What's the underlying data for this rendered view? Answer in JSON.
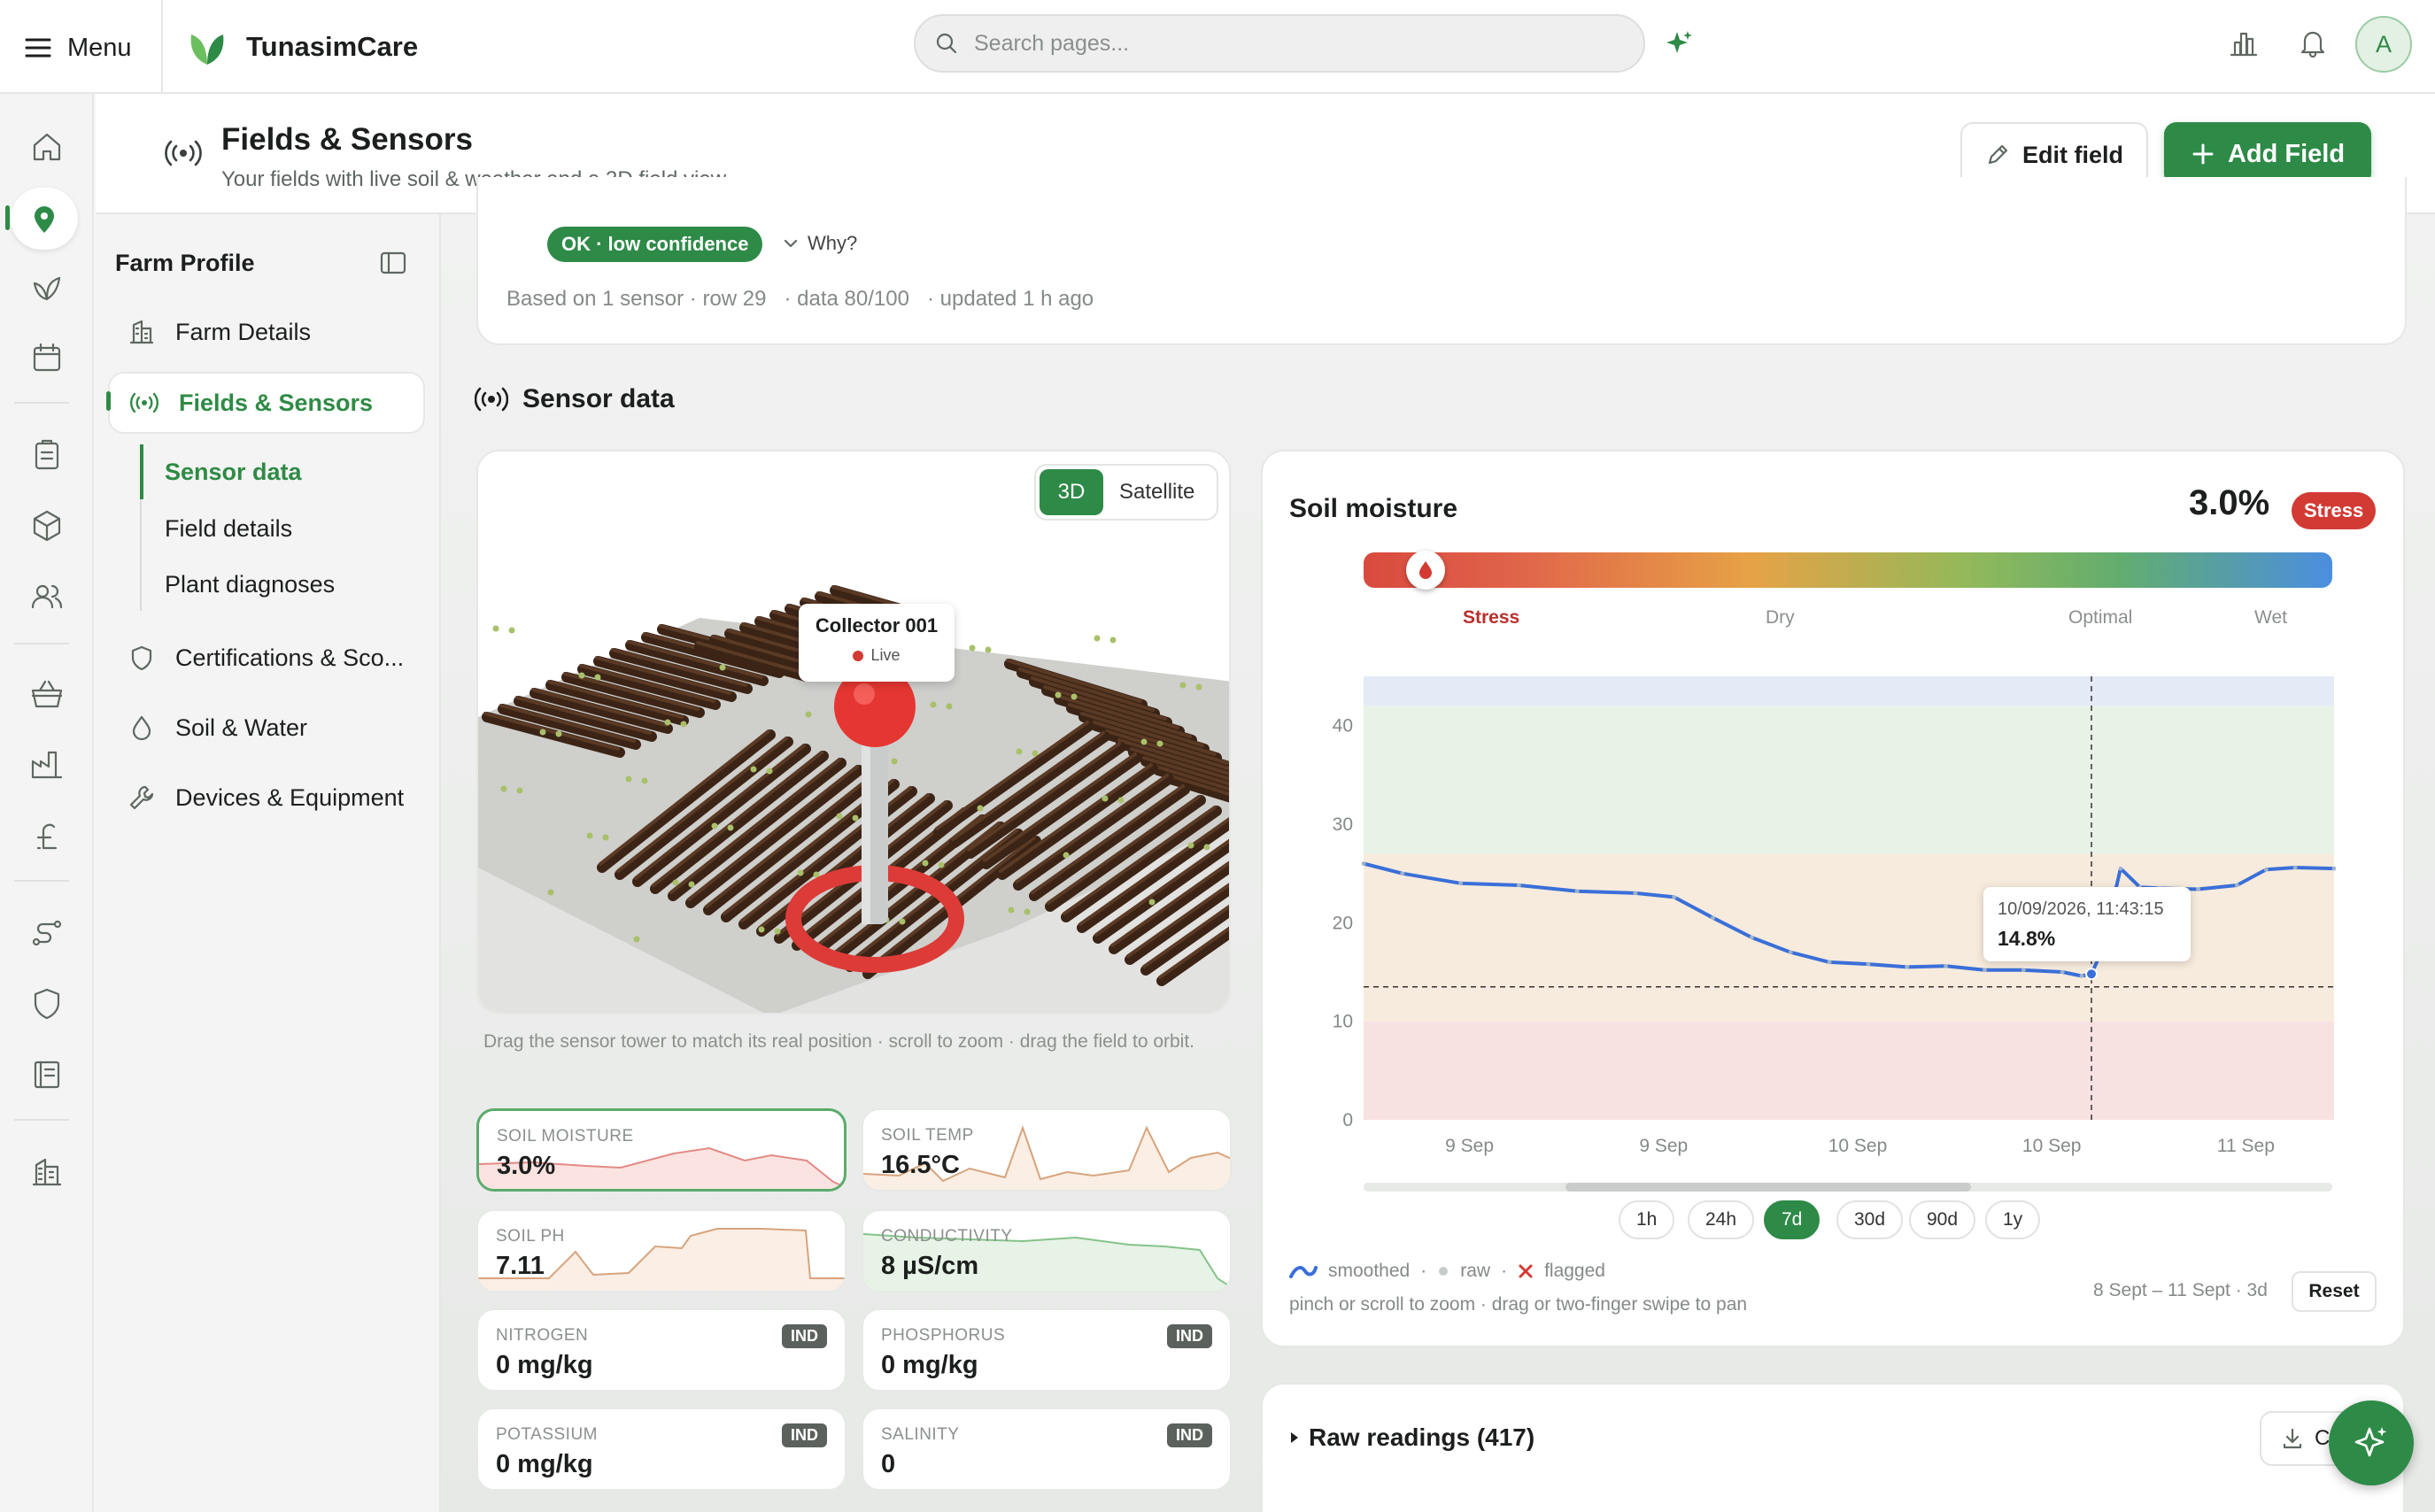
{
  "topbar": {
    "menu_label": "Menu",
    "brand": "TunasimCare",
    "search_placeholder": "Search pages...",
    "avatar_initial": "A"
  },
  "header": {
    "title": "Fields & Sensors",
    "subtitle": "Your fields with live soil & weather and a 3D field view",
    "edit_label": "Edit field",
    "add_label": "Add Field"
  },
  "sidebar": {
    "title": "Farm Profile",
    "items": [
      {
        "label": "Farm Details",
        "icon": "building-icon"
      },
      {
        "label": "Fields & Sensors",
        "icon": "broadcast-icon",
        "active": true
      },
      {
        "label": "Certifications & Sco...",
        "icon": "shield-icon"
      },
      {
        "label": "Soil & Water",
        "icon": "droplet-icon"
      },
      {
        "label": "Devices & Equipment",
        "icon": "wrench-icon"
      }
    ],
    "subitems": [
      "Sensor data",
      "Field details",
      "Plant diagnoses"
    ]
  },
  "status": {
    "badge": "OK · low confidence",
    "why": "Why?",
    "based_on": "Based on 1 sensor · row 29",
    "data_quality": "· data 80/100",
    "updated": "· updated 1 h ago"
  },
  "sensor": {
    "heading": "Sensor data",
    "view_modes": [
      "3D",
      "Satellite"
    ],
    "active_mode": "3D",
    "collector_name": "Collector 001",
    "collector_status": "Live",
    "hint": "Drag the sensor tower to match its real position · scroll to zoom · drag the field to orbit."
  },
  "tiles": [
    {
      "label": "SOIL MOISTURE",
      "value": "3.0%",
      "selected": true
    },
    {
      "label": "SOIL TEMP",
      "value": "16.5°C"
    },
    {
      "label": "SOIL PH",
      "value": "7.11"
    },
    {
      "label": "CONDUCTIVITY",
      "value": "8 µS/cm"
    },
    {
      "label": "NITROGEN",
      "value": "0 mg/kg",
      "badge": "IND"
    },
    {
      "label": "PHOSPHORUS",
      "value": "0 mg/kg",
      "badge": "IND"
    },
    {
      "label": "POTASSIUM",
      "value": "0 mg/kg",
      "badge": "IND"
    },
    {
      "label": "SALINITY",
      "value": "0",
      "badge": "IND"
    }
  ],
  "soil": {
    "title": "Soil moisture",
    "value": "3.0%",
    "status": "Stress",
    "zones": [
      "Stress",
      "Dry",
      "Optimal",
      "Wet"
    ],
    "gauge_fraction": 0.035,
    "ranges": [
      "1h",
      "24h",
      "7d",
      "30d",
      "90d",
      "1y"
    ],
    "active_range": "7d",
    "legend": {
      "smoothed": "smoothed",
      "raw": "raw",
      "flagged": "flagged"
    },
    "pinch_hint": "pinch or scroll to zoom · drag or two-finger swipe to pan",
    "range_label": "8 Sept – 11 Sept · 3d",
    "reset_label": "Reset",
    "tooltip": {
      "timestamp": "10/09/2026, 11:43:15",
      "value": "14.8%"
    }
  },
  "chart_data": {
    "type": "line",
    "title": "",
    "xlabel": "",
    "ylabel": "",
    "ylim": [
      0,
      45
    ],
    "yticks": [
      0,
      10,
      20,
      30,
      40
    ],
    "xtick_labels": [
      "9 Sep",
      "9 Sep",
      "10 Sep",
      "10 Sep",
      "11 Sep"
    ],
    "bands": [
      {
        "from": 0,
        "to": 10,
        "color": "#f8e2e1"
      },
      {
        "from": 10,
        "to": 27,
        "color": "#f7ebdd"
      },
      {
        "from": 27,
        "to": 42,
        "color": "#e8f2e6"
      },
      {
        "from": 42,
        "to": 45,
        "color": "#e4eaf6"
      }
    ],
    "threshold": 13.5,
    "cursor_t": 0.75,
    "grid": false,
    "series": [
      {
        "color": "#3a6fd8",
        "t": [
          0,
          0.04,
          0.1,
          0.16,
          0.22,
          0.28,
          0.32,
          0.36,
          0.4,
          0.44,
          0.48,
          0.52,
          0.56,
          0.6,
          0.64,
          0.68,
          0.72,
          0.74,
          0.75,
          0.76,
          0.78,
          0.8,
          0.82,
          0.86,
          0.9,
          0.93,
          0.96,
          1.0
        ],
        "values": [
          26,
          25,
          24,
          23.8,
          23.2,
          23,
          22.6,
          20.5,
          18.5,
          17,
          16,
          15.8,
          15.5,
          15.6,
          15.2,
          15.2,
          15.0,
          14.6,
          14.8,
          17,
          25.5,
          23.6,
          23.5,
          23.4,
          23.8,
          25.4,
          25.6,
          25.5
        ]
      }
    ]
  },
  "raw_readings": {
    "label": "Raw readings (417)",
    "button": "C"
  },
  "colors": {
    "accent": "#2e8a47",
    "stress": "#d23a34",
    "line": "#3a6fd8"
  }
}
